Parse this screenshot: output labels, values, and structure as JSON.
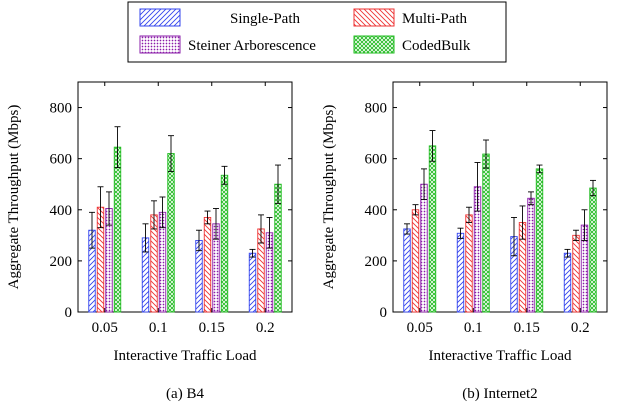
{
  "legend": {
    "entries": [
      "Single-Path",
      "Multi-Path",
      "Steiner Arborescence",
      "CodedBulk"
    ]
  },
  "colors": {
    "Single-Path": "#3344ee",
    "Multi-Path": "#ee3333",
    "Steiner Arborescence": "#8a1ca8",
    "CodedBulk": "#22bb22"
  },
  "chart_data": [
    {
      "type": "bar",
      "caption": "(a) B4",
      "xlabel": "Interactive Traffic Load",
      "ylabel": "Aggregate Throughput (Mbps)",
      "ylim": [
        0,
        900
      ],
      "yticks": [
        0,
        200,
        400,
        600,
        800
      ],
      "categories": [
        "0.05",
        "0.1",
        "0.15",
        "0.2"
      ],
      "series": [
        {
          "name": "Single-Path",
          "values": [
            320,
            290,
            280,
            230
          ],
          "errors": [
            70,
            55,
            40,
            15
          ]
        },
        {
          "name": "Multi-Path",
          "values": [
            410,
            380,
            370,
            325
          ],
          "errors": [
            80,
            55,
            25,
            55
          ]
        },
        {
          "name": "Steiner Arborescence",
          "values": [
            405,
            390,
            345,
            310
          ],
          "errors": [
            65,
            60,
            60,
            60
          ]
        },
        {
          "name": "CodedBulk",
          "values": [
            645,
            620,
            535,
            500
          ],
          "errors": [
            80,
            70,
            35,
            75
          ]
        }
      ]
    },
    {
      "type": "bar",
      "caption": "(b) Internet2",
      "xlabel": "Interactive Traffic Load",
      "ylabel": "Aggregate Throughput (Mbps)",
      "ylim": [
        0,
        900
      ],
      "yticks": [
        0,
        200,
        400,
        600,
        800
      ],
      "categories": [
        "0.05",
        "0.1",
        "0.15",
        "0.2"
      ],
      "series": [
        {
          "name": "Single-Path",
          "values": [
            325,
            308,
            295,
            230
          ],
          "errors": [
            20,
            20,
            75,
            15
          ]
        },
        {
          "name": "Multi-Path",
          "values": [
            400,
            380,
            350,
            300
          ],
          "errors": [
            20,
            30,
            65,
            20
          ]
        },
        {
          "name": "Steiner Arborescence",
          "values": [
            500,
            490,
            445,
            340
          ],
          "errors": [
            60,
            95,
            25,
            60
          ]
        },
        {
          "name": "CodedBulk",
          "values": [
            650,
            618,
            560,
            485
          ],
          "errors": [
            60,
            55,
            15,
            30
          ]
        }
      ]
    }
  ]
}
